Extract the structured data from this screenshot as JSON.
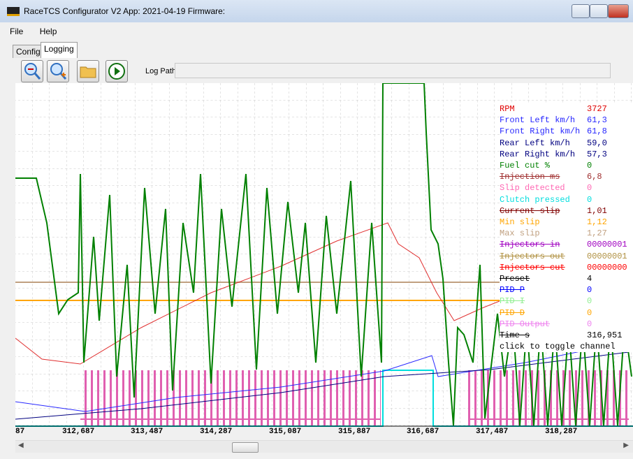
{
  "window": {
    "title": "RaceTCS Configurator V2 App: 2021-04-19 Firmware:"
  },
  "menu": [
    "File",
    "Help"
  ],
  "tabs": [
    "Config",
    "Logging"
  ],
  "toolbar": {
    "log_path_label": "Log Path:"
  },
  "channels": [
    {
      "name": "RPM",
      "value": "3727",
      "color": "#e00000",
      "off": false
    },
    {
      "name": "Front Left km/h",
      "value": "61,3",
      "color": "#2828ff",
      "off": false
    },
    {
      "name": "Front Right km/h",
      "value": "61,8",
      "color": "#2828ff",
      "off": false
    },
    {
      "name": "Rear Left km/h",
      "value": "59,0",
      "color": "#000080",
      "off": false
    },
    {
      "name": "Rear Right km/h",
      "value": "57,3",
      "color": "#000080",
      "off": false
    },
    {
      "name": "Fuel cut %",
      "value": "0",
      "color": "#008000",
      "off": false
    },
    {
      "name": "Injection ms",
      "value": "6,8",
      "color": "#a03030",
      "off": true
    },
    {
      "name": "Slip detected",
      "value": "0",
      "color": "#ff69b4",
      "off": false
    },
    {
      "name": "Clutch pressed",
      "value": "0",
      "color": "#00dede",
      "off": false
    },
    {
      "name": "Current slip",
      "value": "1,01",
      "color": "#800000",
      "off": true
    },
    {
      "name": "Min slip",
      "value": "1,12",
      "color": "#ffa500",
      "off": false
    },
    {
      "name": "Max slip",
      "value": "1,27",
      "color": "#c0a080",
      "off": false
    },
    {
      "name": "Injectors in",
      "value": "00000001",
      "color": "#a000c0",
      "off": true
    },
    {
      "name": "Injectors out",
      "value": "00000001",
      "color": "#b09040",
      "off": true
    },
    {
      "name": "Injectors cut",
      "value": "00000000",
      "color": "#ff0000",
      "off": true
    },
    {
      "name": "Preset",
      "value": "4",
      "color": "#000000",
      "off": true
    },
    {
      "name": "PID P",
      "value": "0",
      "color": "#0000ff",
      "off": true
    },
    {
      "name": "PID I",
      "value": "0",
      "color": "#90ee90",
      "off": true
    },
    {
      "name": "PID D",
      "value": "0",
      "color": "#ffa500",
      "off": true
    },
    {
      "name": "PID Output",
      "value": "0",
      "color": "#ee82ee",
      "off": true
    },
    {
      "name": "Time s",
      "value": "316,951",
      "color": "#000000",
      "off": true
    }
  ],
  "hint": "click to toggle channel",
  "x_labels": [
    "87",
    "312,687",
    "313,487",
    "314,287",
    "315,087",
    "315,887",
    "316,687",
    "317,487",
    "318,287"
  ]
}
